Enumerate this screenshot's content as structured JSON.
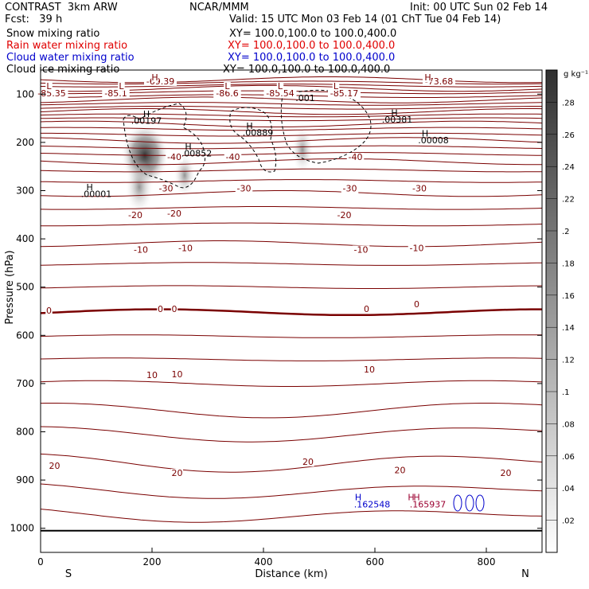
{
  "header": {
    "project": "CONTRAST  3km ARW",
    "org": "NCAR/MMM",
    "init": "Init: 00 UTC Sun 02 Feb 14",
    "fcst": "Fcst:   39 h",
    "valid": "Valid: 15 UTC Mon 03 Feb 14 (01 ChT Tue 04 Feb 14)"
  },
  "fields": [
    {
      "name": "Snow mixing ratio",
      "xy": "XY= 100.0,100.0 to 100.0,400.0",
      "color": "#000000"
    },
    {
      "name": "Rain water mixing ratio",
      "xy": "XY= 100.0,100.0 to 100.0,400.0",
      "color": "#e00000"
    },
    {
      "name": "Cloud water mixing ratio",
      "xy": "XY= 100.0,100.0 to 100.0,400.0",
      "color": "#0000cc"
    },
    {
      "name": "Cloud ice mixing ratio",
      "xy": "XY= 100.0,100.0 to 100.0,400.0",
      "color": "#000000"
    }
  ],
  "chart_data": {
    "type": "contour",
    "xlabel": "Distance (km)",
    "ylabel": "Pressure (hPa)",
    "xlim": [
      0,
      900
    ],
    "ylim": [
      1050,
      50
    ],
    "xticks": [
      0,
      200,
      400,
      600,
      800
    ],
    "yticks": [
      100,
      200,
      300,
      400,
      500,
      600,
      700,
      800,
      900,
      1000
    ],
    "x_endpoints": {
      "left": "S",
      "right": "N"
    },
    "colorbar": {
      "unit": "g kg⁻¹",
      "ticks": [
        ".02",
        ".04",
        ".06",
        ".08",
        ".1",
        ".12",
        ".14",
        ".16",
        ".18",
        ".2",
        ".22",
        ".24",
        ".26",
        ".28"
      ]
    },
    "temperature_labels": [
      {
        "text": "-85.35",
        "x": 20,
        "p": 103
      },
      {
        "text": "L",
        "x": 15,
        "p": 88
      },
      {
        "text": "-85.1",
        "x": 135,
        "p": 103
      },
      {
        "text": "L",
        "x": 145,
        "p": 88
      },
      {
        "text": "-69.39",
        "x": 215,
        "p": 78
      },
      {
        "text": "H",
        "x": 205,
        "p": 70
      },
      {
        "text": "-86.6",
        "x": 335,
        "p": 103
      },
      {
        "text": "L",
        "x": 335,
        "p": 88
      },
      {
        "text": "-85.54",
        "x": 430,
        "p": 103
      },
      {
        "text": "L",
        "x": 430,
        "p": 88
      },
      {
        "text": "-85.17",
        "x": 545,
        "p": 103
      },
      {
        "text": "L",
        "x": 530,
        "p": 88
      },
      {
        "text": "-73.68",
        "x": 715,
        "p": 78
      },
      {
        "text": "H",
        "x": 695,
        "p": 70
      },
      {
        "text": "-40",
        "x": 240,
        "p": 235
      },
      {
        "text": "-40",
        "x": 345,
        "p": 235
      },
      {
        "text": "-40",
        "x": 565,
        "p": 235
      },
      {
        "text": "-30",
        "x": 225,
        "p": 300
      },
      {
        "text": "-30",
        "x": 365,
        "p": 300
      },
      {
        "text": "-30",
        "x": 555,
        "p": 300
      },
      {
        "text": "-30",
        "x": 680,
        "p": 300
      },
      {
        "text": "-20",
        "x": 170,
        "p": 355
      },
      {
        "text": "-20",
        "x": 240,
        "p": 352
      },
      {
        "text": "-20",
        "x": 545,
        "p": 355
      },
      {
        "text": "-10",
        "x": 180,
        "p": 427
      },
      {
        "text": "-10",
        "x": 260,
        "p": 424
      },
      {
        "text": "-10",
        "x": 575,
        "p": 427
      },
      {
        "text": "-10",
        "x": 675,
        "p": 424
      },
      {
        "text": "0",
        "x": 15,
        "p": 553
      },
      {
        "text": "0",
        "x": 215,
        "p": 550
      },
      {
        "text": "0",
        "x": 240,
        "p": 550
      },
      {
        "text": "0",
        "x": 585,
        "p": 550
      },
      {
        "text": "0",
        "x": 675,
        "p": 540
      },
      {
        "text": "10",
        "x": 200,
        "p": 687
      },
      {
        "text": "10",
        "x": 245,
        "p": 685
      },
      {
        "text": "10",
        "x": 590,
        "p": 675
      },
      {
        "text": "20",
        "x": 25,
        "p": 875
      },
      {
        "text": "20",
        "x": 245,
        "p": 890
      },
      {
        "text": "20",
        "x": 480,
        "p": 867
      },
      {
        "text": "20",
        "x": 645,
        "p": 884
      },
      {
        "text": "20",
        "x": 835,
        "p": 890
      }
    ],
    "extrema_labels": [
      {
        "text": "H",
        "x": 190,
        "p": 147,
        "color": "#000000"
      },
      {
        "text": ".00197",
        "x": 190,
        "p": 161,
        "color": "#000000"
      },
      {
        "text": "H",
        "x": 265,
        "p": 215,
        "color": "#000000"
      },
      {
        "text": ".00852",
        "x": 280,
        "p": 229,
        "color": "#000000"
      },
      {
        "text": "H",
        "x": 88,
        "p": 299,
        "color": "#000000"
      },
      {
        "text": ".00001",
        "x": 100,
        "p": 313,
        "color": "#000000"
      },
      {
        "text": "H",
        "x": 375,
        "p": 172,
        "color": "#000000"
      },
      {
        "text": ".00889",
        "x": 390,
        "p": 186,
        "color": "#000000"
      },
      {
        "text": ".001",
        "x": 475,
        "p": 114,
        "color": "#000000"
      },
      {
        "text": "H",
        "x": 635,
        "p": 145,
        "color": "#000000"
      },
      {
        "text": ".00381",
        "x": 640,
        "p": 159,
        "color": "#000000"
      },
      {
        "text": "H",
        "x": 690,
        "p": 188,
        "color": "#000000"
      },
      {
        "text": ".00008",
        "x": 705,
        "p": 202,
        "color": "#000000"
      },
      {
        "text": "H",
        "x": 570,
        "p": 942,
        "color": "#0000cc"
      },
      {
        "text": ".162548",
        "x": 595,
        "p": 957,
        "color": "#0000cc"
      },
      {
        "text": "H",
        "x": 665,
        "p": 942,
        "color": "#9b0030"
      },
      {
        "text": "H",
        "x": 675,
        "p": 942,
        "color": "#9b0030"
      },
      {
        "text": ".165937",
        "x": 695,
        "p": 957,
        "color": "#9b0030"
      }
    ]
  }
}
